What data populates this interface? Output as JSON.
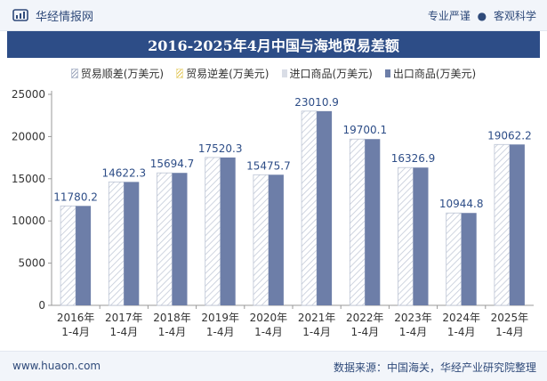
{
  "header": {
    "brand_name": "华经情报网",
    "slogan_left": "专业严谨",
    "slogan_sep": "●",
    "slogan_right": "客观科学"
  },
  "footer": {
    "url": "www.huaon.com",
    "source": "数据来源：中国海关，华经产业研究院整理"
  },
  "colors": {
    "header_bg": "#f2f5fa",
    "title_bg": "#2d4d87",
    "export_bar": "#6d7ea8",
    "hatch": "#bcc4d4",
    "trade_balance_swatch": "#f0e3a8"
  },
  "chart_data": {
    "type": "bar",
    "title": "2016-2025年4月中国与海地贸易差额",
    "categories": [
      [
        "2016年",
        "1-4月"
      ],
      [
        "2017年",
        "1-4月"
      ],
      [
        "2018年",
        "1-4月"
      ],
      [
        "2019年",
        "1-4月"
      ],
      [
        "2020年",
        "1-4月"
      ],
      [
        "2021年",
        "1-4月"
      ],
      [
        "2022年",
        "1-4月"
      ],
      [
        "2023年",
        "1-4月"
      ],
      [
        "2024年",
        "1-4月"
      ],
      [
        "2025年",
        "1-4月"
      ]
    ],
    "series": [
      {
        "name": "贸易顺差(万美元)",
        "values": [
          11780.2,
          14622.3,
          15694.7,
          17520.3,
          15475.7,
          23010.9,
          19700.1,
          16326.9,
          10944.8,
          19062.2
        ]
      },
      {
        "name": "贸易逆差(万美元)",
        "values": [
          0,
          0,
          0,
          0,
          0,
          0,
          0,
          0,
          0,
          0
        ]
      },
      {
        "name": "进口商品(万美元)",
        "values": [
          0,
          0,
          0,
          0,
          0,
          0,
          0,
          0,
          0,
          0
        ]
      },
      {
        "name": "出口商品(万美元)",
        "values": [
          11780.2,
          14622.3,
          15694.7,
          17520.3,
          15475.7,
          23010.9,
          19700.1,
          16326.9,
          10944.8,
          19062.2
        ]
      }
    ],
    "data_labels": [
      "11780.2",
      "14622.3",
      "15694.7",
      "17520.3",
      "15475.7",
      "23010.9",
      "19700.1",
      "16326.9",
      "10944.8",
      "19062.2"
    ],
    "yticks": [
      0,
      5000,
      10000,
      15000,
      20000,
      25000
    ],
    "ylim": [
      0,
      25000
    ],
    "grid": false,
    "legend_position": "top"
  }
}
